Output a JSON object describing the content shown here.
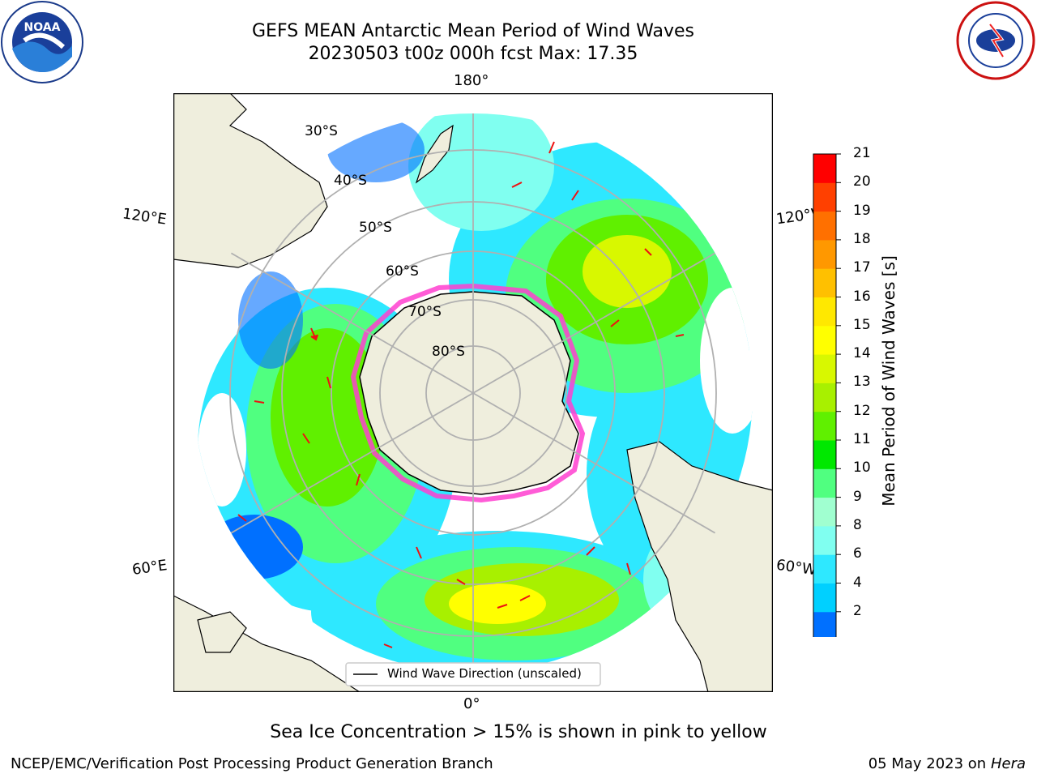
{
  "title": "GEFS MEAN Antarctic Mean Period of Wind Waves",
  "subtitle": "20230503 t00z 000h fcst   Max: 17.35",
  "longitude_labels": {
    "top": "180°",
    "bottom": "0°",
    "left_upper": "120°E",
    "left_lower": "60°E",
    "right_upper": "120°W",
    "right_lower": "60°W"
  },
  "latitude_labels": [
    "30°S",
    "40°S",
    "50°S",
    "60°S",
    "70°S",
    "80°S"
  ],
  "legend": {
    "label": "Wind Wave Direction (unscaled)"
  },
  "colorbar": {
    "label": "Mean Period of Wind Waves [s]",
    "ticks": [
      "21",
      "20",
      "19",
      "18",
      "17",
      "16",
      "15",
      "14",
      "13",
      "12",
      "11",
      "10",
      "9",
      "8",
      "6",
      "4",
      "2"
    ],
    "colors": [
      "#0000ff",
      "#0070ff",
      "#00d0ff",
      "#2ee8ff",
      "#80fff0",
      "#a0ffd0",
      "#50ff80",
      "#00e800",
      "#60f000",
      "#a8f000",
      "#d8f800",
      "#ffff00",
      "#ffe800",
      "#ffc000",
      "#ff9800",
      "#ff7000",
      "#ff4000",
      "#ff0000"
    ]
  },
  "note": "Sea Ice Concentration > 15% is shown in pink to yellow",
  "credit": "NCEP/EMC/Verification Post Processing Product Generation Branch",
  "date": "05 May 2023 on",
  "machine": "Hera",
  "colors": {
    "land": "#efeedd",
    "ice_edge": "#ff40d0",
    "arrow": "#ee1111",
    "grid": "#b0b0b0"
  },
  "icons": {
    "left_logo": "noaa-logo",
    "right_logo": "nws-logo"
  }
}
